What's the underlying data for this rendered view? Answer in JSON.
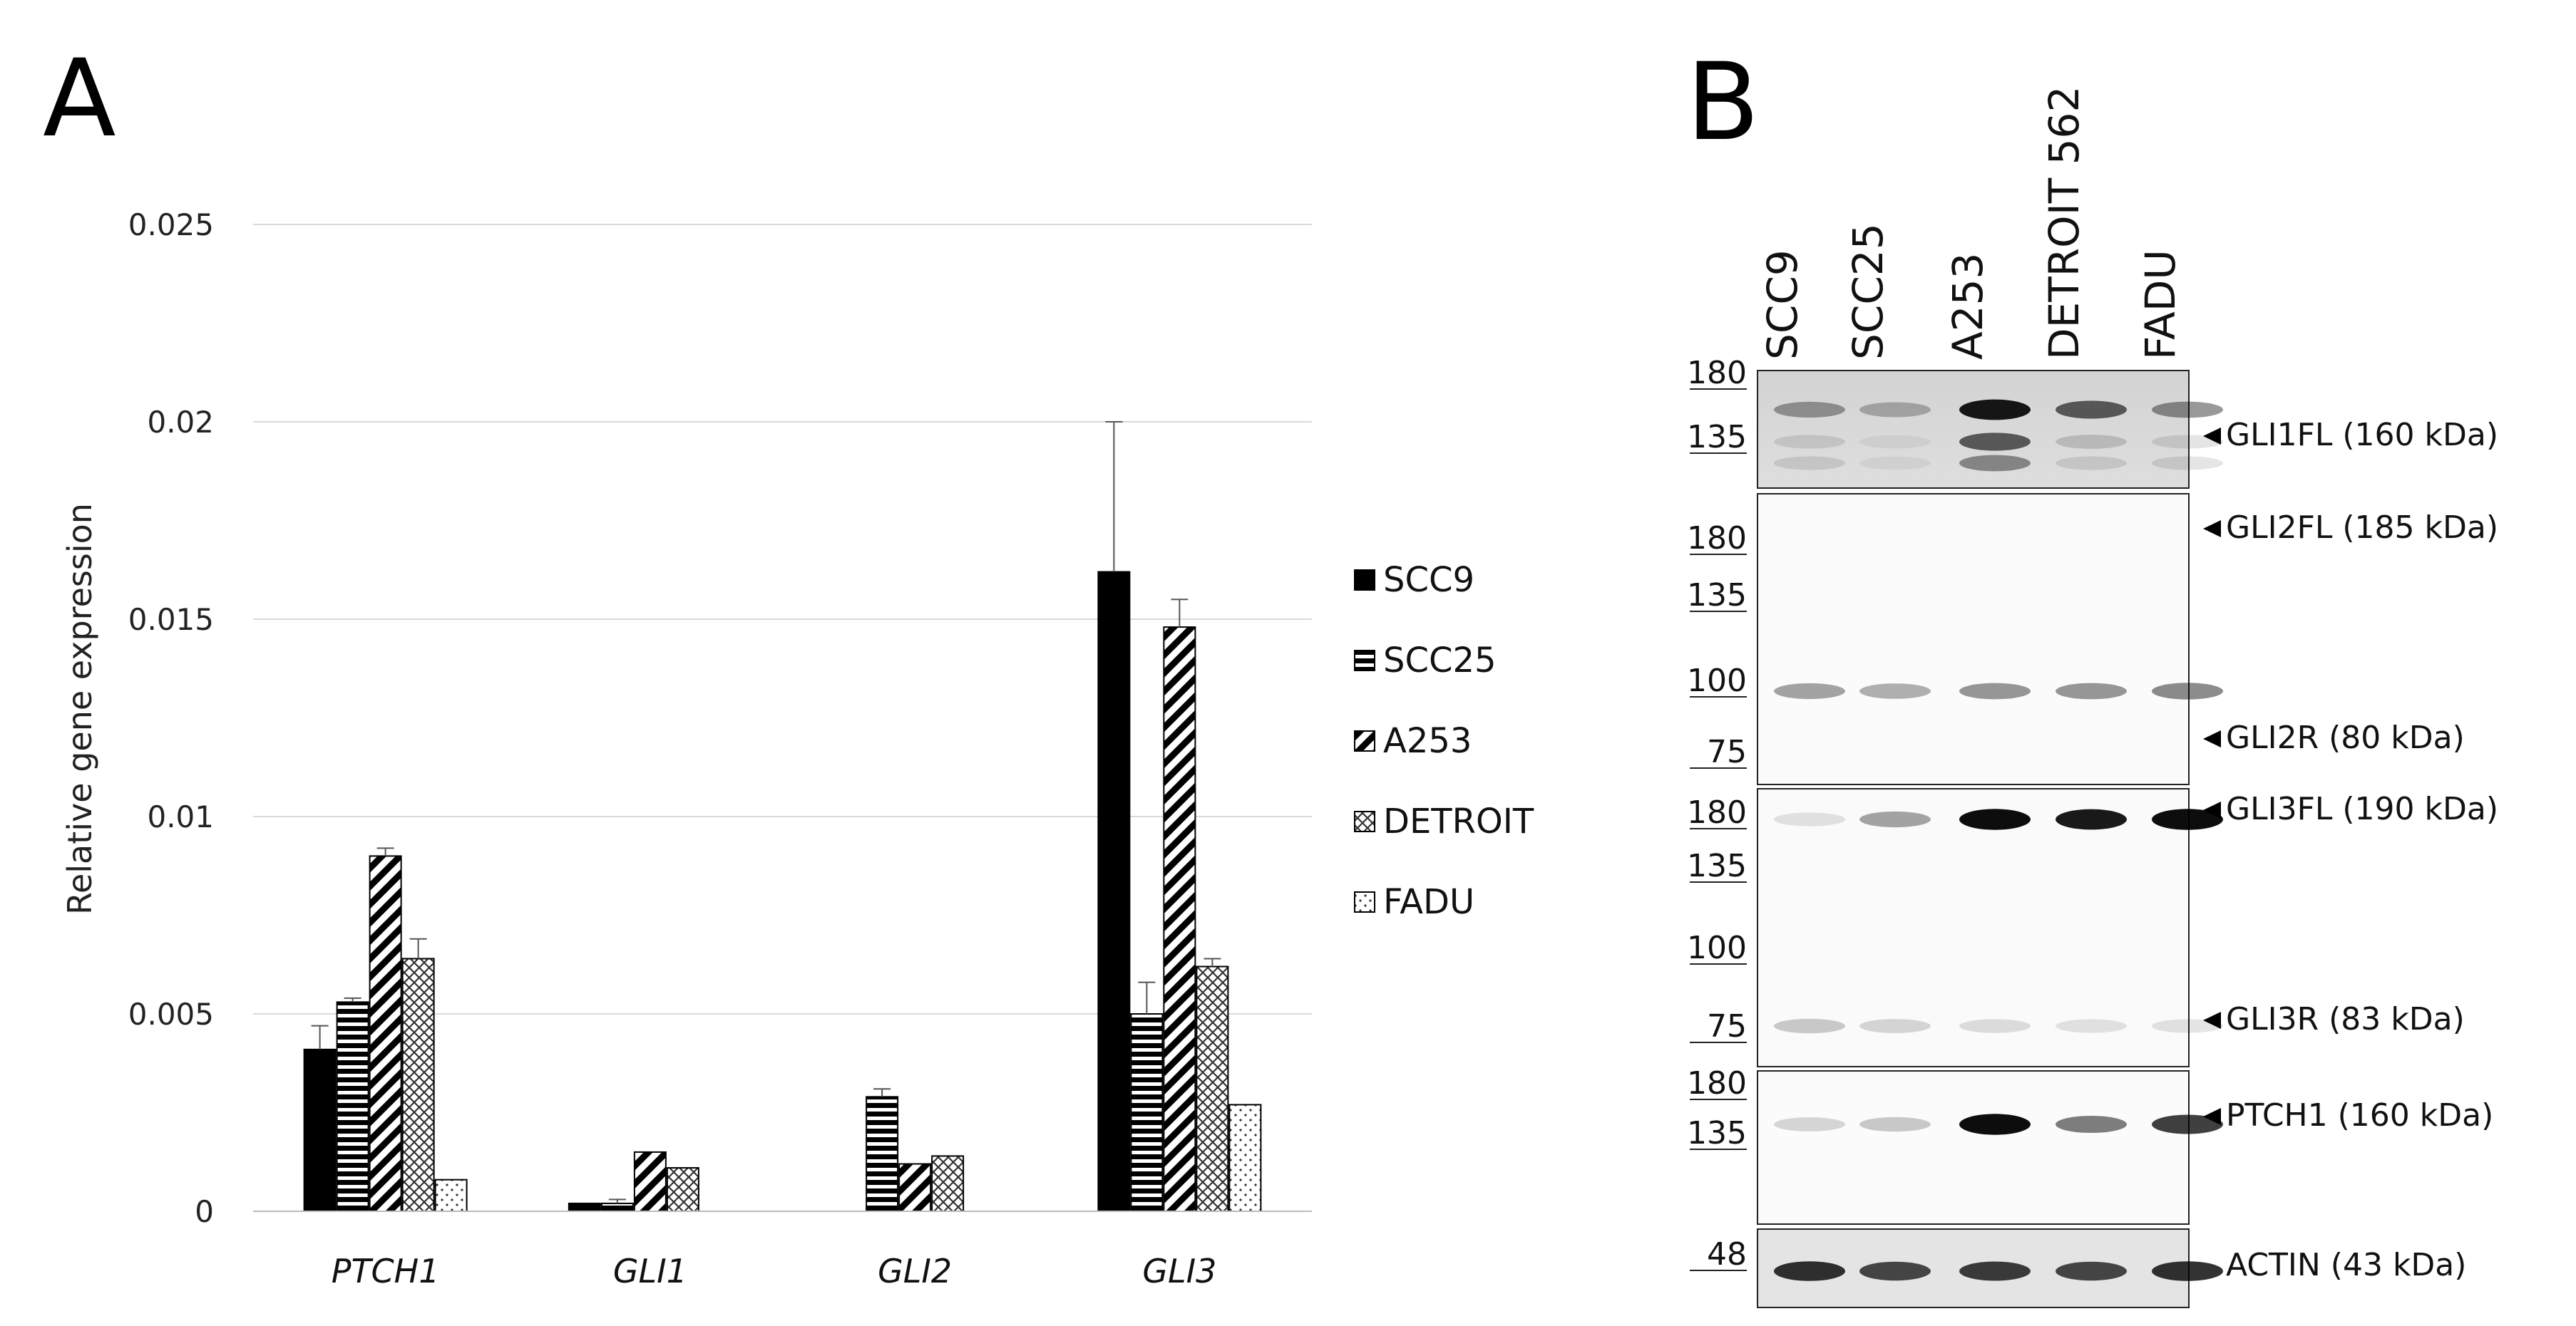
{
  "figure": {
    "panel_a_label": "A",
    "panel_b_label": "B"
  },
  "chart_data": {
    "type": "bar",
    "title": "",
    "xlabel": "",
    "ylabel": "Relative gene expression",
    "ylim": [
      0,
      0.025
    ],
    "yticks": [
      "0",
      "0.005",
      "0.01",
      "0.015",
      "0.02",
      "0.025"
    ],
    "ytick_values": [
      0,
      0.005,
      0.01,
      0.015,
      0.02,
      0.025
    ],
    "grid": true,
    "legend_position": "right",
    "categories": [
      "PTCH1",
      "GLI1",
      "GLI2",
      "GLI3"
    ],
    "series": [
      {
        "name": "SCC9",
        "pattern": "solid",
        "values": [
          0.0041,
          0.0002,
          0.0,
          0.0162
        ],
        "errors": [
          0.0006,
          0.0,
          0.0,
          0.0038
        ]
      },
      {
        "name": "SCC25",
        "pattern": "horizontal",
        "values": [
          0.0053,
          0.0002,
          0.0029,
          0.005
        ],
        "errors": [
          0.0001,
          0.0001,
          0.0002,
          0.0008
        ]
      },
      {
        "name": "A253",
        "pattern": "diagonal",
        "values": [
          0.009,
          0.0015,
          0.0012,
          0.0148
        ],
        "errors": [
          0.0002,
          0.0,
          0.0,
          0.0007
        ]
      },
      {
        "name": "DETROIT",
        "pattern": "crosshatch",
        "values": [
          0.0064,
          0.0011,
          0.0014,
          0.0062
        ],
        "errors": [
          0.0005,
          0.0,
          0.0,
          0.0002
        ]
      },
      {
        "name": "FADU",
        "pattern": "dotted",
        "values": [
          0.0008,
          0.0,
          0.0,
          0.0027
        ],
        "errors": [
          0.0,
          0.0,
          0.0,
          0.0
        ]
      }
    ]
  },
  "western_blot": {
    "lanes": [
      "SCC9",
      "SCC25",
      "A253",
      "DETROIT 562",
      "FADU"
    ],
    "panels": [
      {
        "markers": [
          "180",
          "135"
        ],
        "labels": [
          "GLI1FL (160 kDa)"
        ]
      },
      {
        "markers": [
          "180",
          "135",
          "100",
          "75"
        ],
        "labels": [
          "GLI2FL (185 kDa)",
          "GLI2R (80 kDa)"
        ]
      },
      {
        "markers": [
          "180",
          "135",
          "100",
          "75"
        ],
        "labels": [
          "GLI3FL (190 kDa)",
          "GLI3R (83 kDa)"
        ]
      },
      {
        "markers": [
          "180",
          "135"
        ],
        "labels": [
          "PTCH1 (160 kDa)"
        ]
      },
      {
        "markers": [
          "48"
        ],
        "labels": [
          "ACTIN (43 kDa)"
        ]
      }
    ]
  }
}
